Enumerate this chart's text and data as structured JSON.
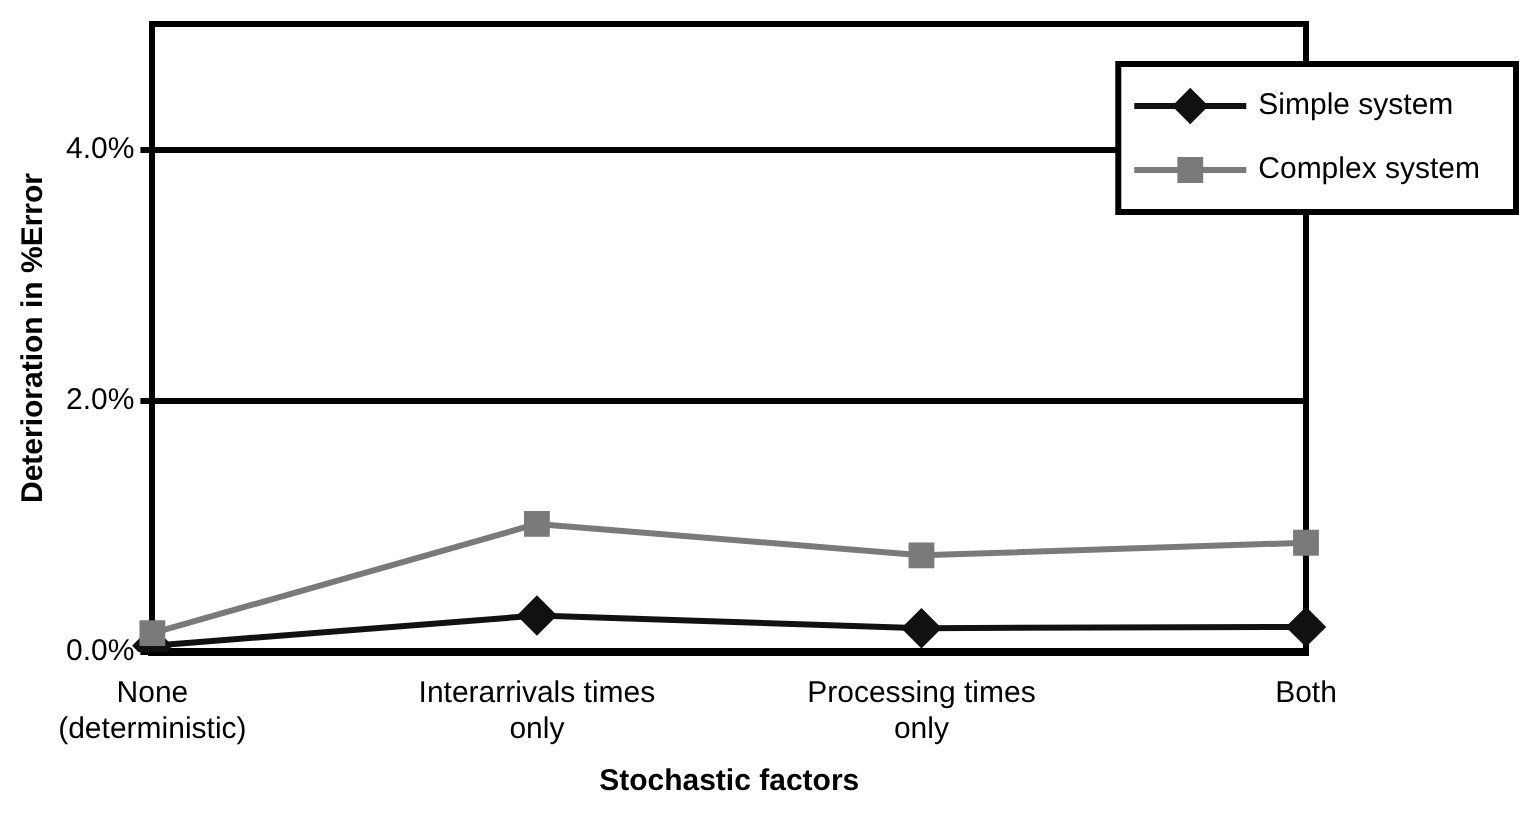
{
  "chart_data": {
    "type": "line",
    "xlabel": "Stochastic factors",
    "ylabel": "Deterioration in %Error",
    "categories": [
      "None (deterministic)",
      "Interarrivals times only",
      "Processing times only",
      "Both"
    ],
    "series": [
      {
        "name": "Simple system",
        "color": "#111111",
        "marker": "diamond",
        "values": [
          0.05,
          0.29,
          0.19,
          0.2
        ]
      },
      {
        "name": "Complex system",
        "color": "#7a7a7a",
        "marker": "square",
        "values": [
          0.15,
          1.02,
          0.77,
          0.87
        ]
      }
    ],
    "ylim": [
      0,
      5
    ],
    "yticks": [
      {
        "value": 0,
        "label": "0.0%"
      },
      {
        "value": 2,
        "label": "2.0%"
      },
      {
        "value": 4,
        "label": "4.0%"
      }
    ],
    "grid": "y",
    "legend": "top right",
    "line_style": "solid"
  }
}
